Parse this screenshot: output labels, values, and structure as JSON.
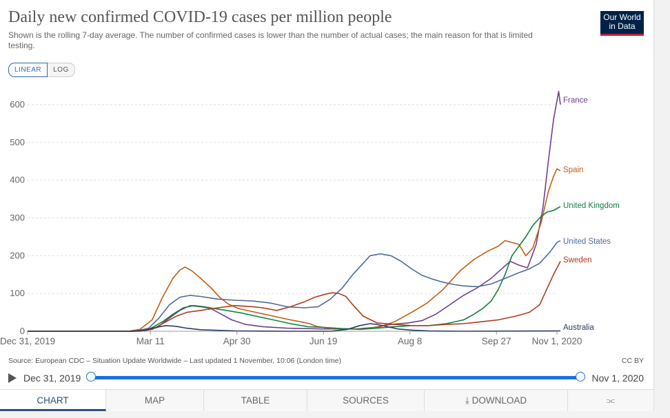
{
  "header": {
    "title": "Daily new confirmed COVID-19 cases per million people",
    "subtitle": "Shown is the rolling 7-day average. The number of confirmed cases is lower than the number of actual cases; the main reason for that is limited testing.",
    "logo_line1": "Our World",
    "logo_line2": "in Data"
  },
  "scale_toggle": {
    "linear": "LINEAR",
    "log": "LOG",
    "selected": "LINEAR"
  },
  "footer": {
    "source": "Source: European CDC – Situation Update Worldwide – Last updated 1 November, 10:06 (London time)",
    "license": "CC BY"
  },
  "timeline": {
    "start": "Dec 31, 2019",
    "end": "Nov 1, 2020",
    "start_fraction": 0,
    "end_fraction": 1
  },
  "tabs": [
    {
      "label": "CHART",
      "active": true
    },
    {
      "label": "MAP",
      "active": false
    },
    {
      "label": "TABLE",
      "active": false
    },
    {
      "label": "SOURCES",
      "active": false
    },
    {
      "label": "DOWNLOAD",
      "active": false
    }
  ],
  "colors": {
    "France": "#6d3e91",
    "Spain": "#c15c11",
    "United Kingdom": "#12803d",
    "United States": "#4c6a9c",
    "Sweden": "#b03a1b",
    "Australia": "#2a3a66"
  },
  "chart_data": {
    "type": "line",
    "title": "Daily new confirmed COVID-19 cases per million people",
    "xlabel": "",
    "ylabel": "",
    "x_unit": "days since Dec 31, 2019",
    "xlim": [
      0,
      306
    ],
    "ylim": [
      0,
      640
    ],
    "yticks": [
      0,
      100,
      200,
      300,
      400,
      500,
      600
    ],
    "xticks": [
      {
        "day": 0,
        "label": "Dec 31, 2019"
      },
      {
        "day": 71,
        "label": "Mar 11"
      },
      {
        "day": 121,
        "label": "Apr 30"
      },
      {
        "day": 171,
        "label": "Jun 19"
      },
      {
        "day": 221,
        "label": "Aug 8"
      },
      {
        "day": 271,
        "label": "Sep 27"
      },
      {
        "day": 306,
        "label": "Nov 1, 2020"
      }
    ],
    "grid": true,
    "series": [
      {
        "name": "France",
        "points": [
          [
            0,
            0
          ],
          [
            60,
            0
          ],
          [
            68,
            2
          ],
          [
            75,
            10
          ],
          [
            82,
            35
          ],
          [
            88,
            55
          ],
          [
            94,
            68
          ],
          [
            100,
            65
          ],
          [
            106,
            60
          ],
          [
            112,
            45
          ],
          [
            118,
            30
          ],
          [
            126,
            18
          ],
          [
            136,
            12
          ],
          [
            150,
            8
          ],
          [
            170,
            6
          ],
          [
            190,
            6
          ],
          [
            200,
            10
          ],
          [
            210,
            18
          ],
          [
            220,
            22
          ],
          [
            228,
            28
          ],
          [
            236,
            45
          ],
          [
            244,
            70
          ],
          [
            252,
            95
          ],
          [
            260,
            115
          ],
          [
            268,
            140
          ],
          [
            274,
            165
          ],
          [
            279,
            185
          ],
          [
            284,
            175
          ],
          [
            289,
            168
          ],
          [
            294,
            230
          ],
          [
            298,
            330
          ],
          [
            301,
            450
          ],
          [
            304,
            560
          ],
          [
            306,
            610
          ],
          [
            307,
            635
          ],
          [
            308,
            600
          ]
        ]
      },
      {
        "name": "Spain",
        "points": [
          [
            0,
            0
          ],
          [
            58,
            0
          ],
          [
            65,
            5
          ],
          [
            72,
            30
          ],
          [
            78,
            90
          ],
          [
            84,
            140
          ],
          [
            88,
            162
          ],
          [
            91,
            170
          ],
          [
            95,
            160
          ],
          [
            100,
            140
          ],
          [
            106,
            115
          ],
          [
            111,
            90
          ],
          [
            116,
            72
          ],
          [
            122,
            60
          ],
          [
            130,
            52
          ],
          [
            140,
            42
          ],
          [
            152,
            30
          ],
          [
            158,
            25
          ],
          [
            163,
            20
          ],
          [
            167,
            13
          ],
          [
            174,
            8
          ],
          [
            185,
            6
          ],
          [
            195,
            6
          ],
          [
            204,
            12
          ],
          [
            212,
            25
          ],
          [
            222,
            50
          ],
          [
            231,
            75
          ],
          [
            240,
            110
          ],
          [
            250,
            160
          ],
          [
            258,
            190
          ],
          [
            266,
            212
          ],
          [
            272,
            225
          ],
          [
            276,
            240
          ],
          [
            280,
            235
          ],
          [
            284,
            230
          ],
          [
            288,
            200
          ],
          [
            292,
            220
          ],
          [
            297,
            290
          ],
          [
            301,
            370
          ],
          [
            304,
            410
          ],
          [
            306,
            430
          ],
          [
            308,
            425
          ]
        ]
      },
      {
        "name": "United Kingdom",
        "points": [
          [
            0,
            0
          ],
          [
            62,
            0
          ],
          [
            70,
            5
          ],
          [
            78,
            25
          ],
          [
            84,
            45
          ],
          [
            90,
            62
          ],
          [
            96,
            68
          ],
          [
            102,
            65
          ],
          [
            108,
            60
          ],
          [
            115,
            55
          ],
          [
            124,
            48
          ],
          [
            132,
            40
          ],
          [
            142,
            30
          ],
          [
            152,
            20
          ],
          [
            162,
            12
          ],
          [
            172,
            10
          ],
          [
            182,
            7
          ],
          [
            192,
            5
          ],
          [
            202,
            8
          ],
          [
            212,
            12
          ],
          [
            222,
            15
          ],
          [
            232,
            15
          ],
          [
            242,
            20
          ],
          [
            252,
            30
          ],
          [
            258,
            45
          ],
          [
            263,
            60
          ],
          [
            268,
            80
          ],
          [
            272,
            110
          ],
          [
            276,
            150
          ],
          [
            280,
            200
          ],
          [
            284,
            225
          ],
          [
            288,
            250
          ],
          [
            292,
            280
          ],
          [
            296,
            300
          ],
          [
            300,
            315
          ],
          [
            304,
            320
          ],
          [
            308,
            330
          ]
        ]
      },
      {
        "name": "United States",
        "points": [
          [
            0,
            0
          ],
          [
            62,
            0
          ],
          [
            70,
            8
          ],
          [
            76,
            35
          ],
          [
            82,
            70
          ],
          [
            88,
            90
          ],
          [
            94,
            95
          ],
          [
            100,
            92
          ],
          [
            110,
            85
          ],
          [
            120,
            82
          ],
          [
            130,
            80
          ],
          [
            140,
            75
          ],
          [
            150,
            65
          ],
          [
            160,
            62
          ],
          [
            168,
            65
          ],
          [
            175,
            85
          ],
          [
            182,
            115
          ],
          [
            188,
            150
          ],
          [
            194,
            180
          ],
          [
            198,
            200
          ],
          [
            204,
            205
          ],
          [
            210,
            200
          ],
          [
            216,
            185
          ],
          [
            222,
            165
          ],
          [
            228,
            148
          ],
          [
            234,
            138
          ],
          [
            240,
            130
          ],
          [
            246,
            124
          ],
          [
            252,
            120
          ],
          [
            260,
            118
          ],
          [
            268,
            125
          ],
          [
            276,
            140
          ],
          [
            284,
            155
          ],
          [
            290,
            165
          ],
          [
            296,
            180
          ],
          [
            302,
            210
          ],
          [
            306,
            235
          ],
          [
            308,
            240
          ]
        ]
      },
      {
        "name": "Sweden",
        "points": [
          [
            0,
            0
          ],
          [
            65,
            0
          ],
          [
            72,
            5
          ],
          [
            80,
            25
          ],
          [
            86,
            40
          ],
          [
            92,
            50
          ],
          [
            100,
            55
          ],
          [
            110,
            62
          ],
          [
            120,
            68
          ],
          [
            130,
            65
          ],
          [
            136,
            62
          ],
          [
            144,
            55
          ],
          [
            152,
            65
          ],
          [
            160,
            78
          ],
          [
            166,
            90
          ],
          [
            172,
            98
          ],
          [
            176,
            102
          ],
          [
            180,
            100
          ],
          [
            184,
            92
          ],
          [
            188,
            70
          ],
          [
            194,
            40
          ],
          [
            202,
            22
          ],
          [
            212,
            18
          ],
          [
            222,
            15
          ],
          [
            232,
            15
          ],
          [
            242,
            18
          ],
          [
            252,
            20
          ],
          [
            262,
            25
          ],
          [
            272,
            30
          ],
          [
            282,
            40
          ],
          [
            290,
            50
          ],
          [
            296,
            70
          ],
          [
            300,
            110
          ],
          [
            304,
            150
          ],
          [
            308,
            185
          ]
        ]
      },
      {
        "name": "Australia",
        "points": [
          [
            0,
            0
          ],
          [
            60,
            0
          ],
          [
            68,
            3
          ],
          [
            74,
            10
          ],
          [
            80,
            15
          ],
          [
            86,
            13
          ],
          [
            92,
            8
          ],
          [
            100,
            4
          ],
          [
            120,
            1
          ],
          [
            150,
            0
          ],
          [
            175,
            0
          ],
          [
            185,
            5
          ],
          [
            192,
            15
          ],
          [
            198,
            20
          ],
          [
            202,
            18
          ],
          [
            208,
            12
          ],
          [
            214,
            6
          ],
          [
            222,
            3
          ],
          [
            232,
            1
          ],
          [
            250,
            0
          ],
          [
            308,
            1
          ]
        ]
      }
    ]
  }
}
